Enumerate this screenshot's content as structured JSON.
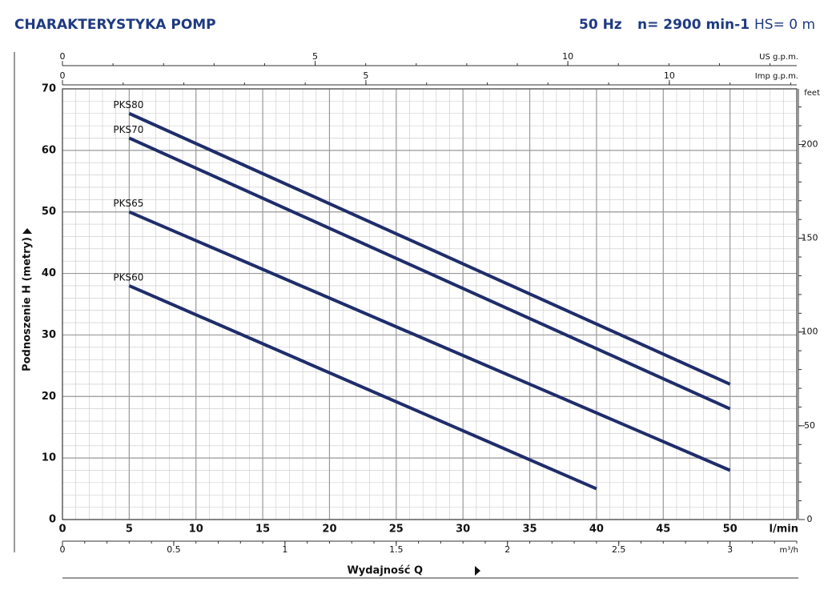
{
  "chart_data": {
    "type": "line",
    "title": "CHARAKTERYSTYKA POMP",
    "header_items": [
      "50 Hz",
      "n= 2900 min-1",
      "HS= 0 m"
    ],
    "x_label": "Wydajność Q",
    "y_label": "Podnoszenie H (metry)",
    "x_unit": "l/min",
    "xlim": [
      0,
      55
    ],
    "xticks": [
      0,
      5,
      10,
      15,
      20,
      25,
      30,
      35,
      40,
      45,
      50
    ],
    "ylim": [
      0,
      70
    ],
    "yticks": [
      0,
      10,
      20,
      30,
      40,
      50,
      60,
      70
    ],
    "grid": true,
    "x_minor_step": 1,
    "y_minor_step": 2,
    "series": [
      {
        "name": "PKS80",
        "color": "#1f2d6b",
        "x": [
          5,
          50
        ],
        "values": [
          66,
          22
        ]
      },
      {
        "name": "PKS70",
        "color": "#1f2d6b",
        "x": [
          5,
          50
        ],
        "values": [
          62,
          18
        ]
      },
      {
        "name": "PKS65",
        "color": "#1f2d6b",
        "x": [
          5,
          50
        ],
        "values": [
          50,
          8
        ]
      },
      {
        "name": "PKS60",
        "color": "#1f2d6b",
        "x": [
          5,
          40
        ],
        "values": [
          38,
          5
        ]
      }
    ],
    "secondary_axes": [
      {
        "label": "US g.p.m.",
        "position": "top-outer",
        "lim": [
          0,
          14.53
        ],
        "ticks": [
          0,
          5,
          10
        ],
        "minor_step": 1
      },
      {
        "label": "Imp g.p.m.",
        "position": "top-inner",
        "lim": [
          0,
          12.1
        ],
        "ticks": [
          0,
          5,
          10
        ],
        "minor_step": 1
      },
      {
        "label": "m³/h",
        "position": "bottom",
        "lim": [
          0,
          3.3
        ],
        "ticks": [
          0,
          {
            "value": 0.5,
            "label": "0.5"
          },
          1,
          {
            "value": 1.5,
            "label": "1.5"
          },
          2,
          {
            "value": 2.5,
            "label": "2.5"
          },
          3
        ],
        "minor_step": 0.1
      },
      {
        "label": "feet",
        "position": "right",
        "lim": [
          0,
          229.66
        ],
        "ticks": [
          0,
          50,
          100,
          150,
          200
        ],
        "minor_step": 10
      }
    ]
  }
}
